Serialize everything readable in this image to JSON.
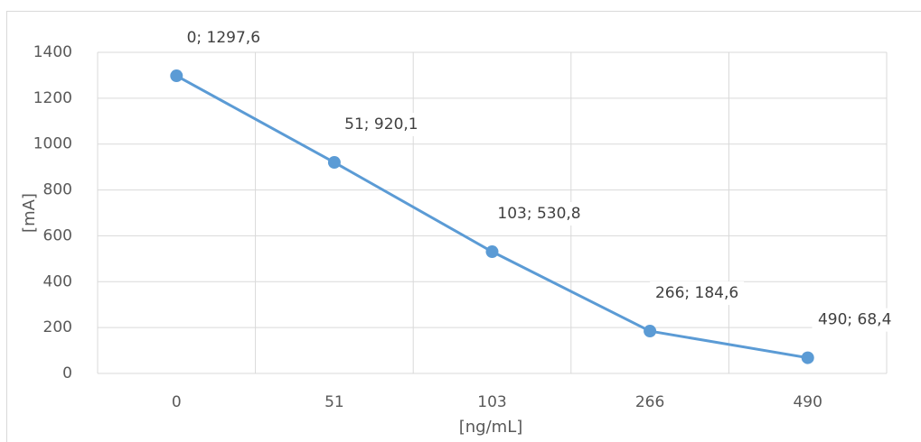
{
  "chart_data": {
    "type": "line",
    "categories": [
      "0",
      "51",
      "103",
      "266",
      "490"
    ],
    "series": [
      {
        "values": [
          1297.6,
          920.1,
          530.8,
          184.6,
          68.4
        ],
        "data_labels": [
          "0; 1297,6",
          "51; 920,1",
          "103; 530,8",
          "266; 184,6",
          "490; 68,4"
        ],
        "color": "#5b9bd5"
      }
    ],
    "xlabel": "[ng/mL]",
    "ylabel": "[mA]",
    "ylim": [
      0,
      1400
    ],
    "yticks": [
      "0",
      "200",
      "400",
      "600",
      "800",
      "1000",
      "1200",
      "1400"
    ],
    "grid": true,
    "legend": "none",
    "colors": {
      "line": "#5b9bd5",
      "grid": "#d9d9d9",
      "tick_text": "#595959",
      "label_text": "#404040"
    }
  }
}
